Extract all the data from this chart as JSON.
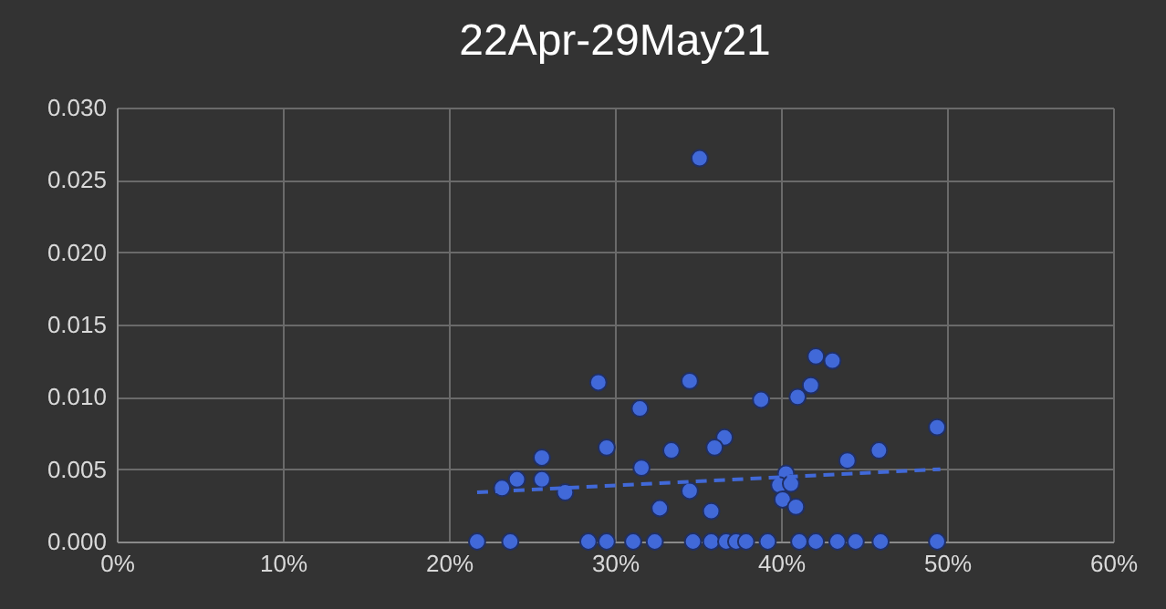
{
  "chart_data": {
    "type": "scatter",
    "title": "22Apr-29May21",
    "series": [
      {
        "type": "scatter",
        "color": "#4169d8",
        "marker": "circle",
        "x": [
          29.0,
          31.5,
          25.6,
          24.1,
          25.6,
          23.2,
          27.0,
          29.5,
          31.6,
          35.1,
          42.1,
          43.1,
          34.5,
          38.8,
          41.0,
          41.8,
          49.4,
          33.4,
          36.6,
          36.0,
          45.9,
          44.0,
          34.5,
          32.7,
          35.8,
          40.3,
          39.9,
          40.6,
          40.1,
          40.9,
          21.7,
          23.7,
          28.4,
          29.5,
          31.1,
          32.4,
          34.7,
          35.8,
          36.7,
          37.3,
          37.9,
          39.2,
          41.1,
          42.1,
          43.4,
          44.5,
          46.0,
          49.4
        ],
        "values": [
          0.011,
          0.0092,
          0.0058,
          0.0043,
          0.0043,
          0.0037,
          0.0034,
          0.0065,
          0.0051,
          0.0265,
          0.0128,
          0.0125,
          0.0111,
          0.0098,
          0.01,
          0.0108,
          0.0079,
          0.0063,
          0.0072,
          0.0065,
          0.0063,
          0.0056,
          0.0035,
          0.0023,
          0.0021,
          0.0047,
          0.0039,
          0.004,
          0.0029,
          0.0024,
          0,
          0,
          0,
          0,
          0,
          0,
          0,
          0,
          0,
          0,
          0,
          0,
          0,
          0,
          0,
          0,
          0,
          0
        ]
      },
      {
        "type": "line",
        "color": "#4169d8",
        "line_style": "dashed",
        "x": [
          21.7,
          49.6
        ],
        "values": [
          0.0034,
          0.005
        ]
      }
    ],
    "xlim": [
      0,
      60
    ],
    "xticks": [
      {
        "value": 0,
        "label": "0%"
      },
      {
        "value": 10,
        "label": "10%"
      },
      {
        "value": 20,
        "label": "20%"
      },
      {
        "value": 30,
        "label": "30%"
      },
      {
        "value": 40,
        "label": "40%"
      },
      {
        "value": 50,
        "label": "50%"
      },
      {
        "value": 60,
        "label": "60%"
      }
    ],
    "ylim": [
      0,
      0.03
    ],
    "yticks": [
      {
        "value": 0,
        "label": "0.000"
      },
      {
        "value": 0.005,
        "label": "0.005"
      },
      {
        "value": 0.01,
        "label": "0.010"
      },
      {
        "value": 0.015,
        "label": "0.015"
      },
      {
        "value": 0.02,
        "label": "0.020"
      },
      {
        "value": 0.025,
        "label": "0.025"
      },
      {
        "value": 0.03,
        "label": "0.030"
      }
    ],
    "grid": true
  }
}
